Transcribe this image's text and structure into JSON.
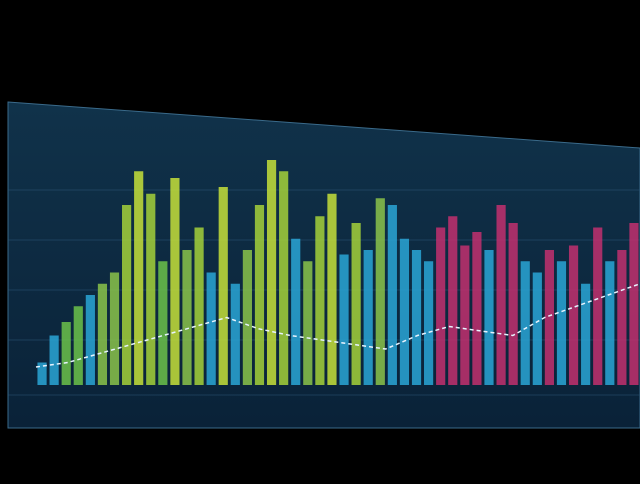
{
  "chart_data": {
    "type": "bar",
    "values": [
      10,
      22,
      28,
      35,
      40,
      45,
      50,
      80,
      95,
      85,
      55,
      92,
      60,
      70,
      50,
      88,
      45,
      60,
      80,
      100,
      95,
      65,
      55,
      75,
      85,
      58,
      72,
      60,
      83,
      80,
      65,
      60,
      55,
      70,
      75,
      62,
      68,
      60,
      80,
      72,
      55,
      50,
      60,
      55,
      62,
      45,
      70,
      55,
      60,
      72
    ],
    "colors": [
      "#2aa6d6",
      "#2aa6d6",
      "#6cc24a",
      "#6cc24a",
      "#2aa6d6",
      "#8bc34a",
      "#8bc34a",
      "#a4d13a",
      "#c6e03a",
      "#a4d13a",
      "#6cc24a",
      "#c6e03a",
      "#8bc34a",
      "#a4d13a",
      "#2aa6d6",
      "#c6e03a",
      "#2aa6d6",
      "#8bc34a",
      "#a4d13a",
      "#c6e03a",
      "#a4d13a",
      "#2aa6d6",
      "#8bc34a",
      "#a4d13a",
      "#c6e03a",
      "#2aa6d6",
      "#a4d13a",
      "#2aa6d6",
      "#8bc34a",
      "#2aa6d6",
      "#2aa6d6",
      "#2aa6d6",
      "#2aa6d6",
      "#c2306e",
      "#c2306e",
      "#c2306e",
      "#c2306e",
      "#2aa6d6",
      "#c2306e",
      "#c2306e",
      "#2aa6d6",
      "#2aa6d6",
      "#c2306e",
      "#2aa6d6",
      "#c2306e",
      "#2aa6d6",
      "#c2306e",
      "#2aa6d6",
      "#c2306e",
      "#c2306e"
    ],
    "ylim": [
      0,
      100
    ],
    "overlay": {
      "color": "#e8f4ff",
      "values": [
        8,
        10,
        14,
        18,
        22,
        26,
        30,
        25,
        22,
        20,
        18,
        16,
        22,
        26,
        24,
        22,
        30,
        35,
        40,
        45
      ]
    }
  }
}
